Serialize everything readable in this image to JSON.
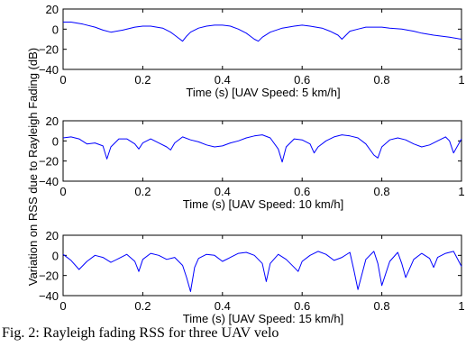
{
  "chart_data": {
    "ylabel": "Variation on RSS due to Rayleigh Fading (dB)",
    "color": "#0000ff",
    "panels": [
      {
        "type": "line",
        "xlabel": "Time (s) [UAV Speed: 5 km/h]",
        "xlim": [
          0,
          1
        ],
        "ylim": [
          -40,
          20
        ],
        "xticks": [
          "0",
          "0.2",
          "0.4",
          "0.6",
          "0.8",
          "1"
        ],
        "yticks": [
          "20",
          "0",
          "−20",
          "−40"
        ],
        "x": [
          0,
          0.02,
          0.05,
          0.08,
          0.1,
          0.12,
          0.15,
          0.18,
          0.2,
          0.22,
          0.25,
          0.27,
          0.28,
          0.29,
          0.3,
          0.31,
          0.32,
          0.34,
          0.36,
          0.38,
          0.4,
          0.42,
          0.44,
          0.46,
          0.47,
          0.48,
          0.49,
          0.5,
          0.52,
          0.55,
          0.58,
          0.6,
          0.62,
          0.65,
          0.67,
          0.69,
          0.7,
          0.71,
          0.72,
          0.74,
          0.76,
          0.78,
          0.8,
          0.82,
          0.85,
          0.88,
          0.9,
          0.93,
          0.95,
          0.97,
          1.0
        ],
        "y": [
          7,
          7,
          5,
          2,
          -1,
          -3,
          -1,
          2,
          3,
          3,
          1,
          -3,
          -6,
          -9,
          -12,
          -7,
          -3,
          1,
          3,
          4,
          4,
          3,
          0,
          -4,
          -7,
          -10,
          -12,
          -8,
          -3,
          1,
          3,
          4,
          3,
          1,
          -2,
          -6,
          -10,
          -6,
          -2,
          0,
          2,
          2,
          2,
          1,
          0,
          -2,
          -4,
          -6,
          -7,
          -8,
          -10
        ]
      },
      {
        "type": "line",
        "xlabel": "Time (s) [UAV Speed: 10 km/h]",
        "xlim": [
          0,
          1
        ],
        "ylim": [
          -40,
          20
        ],
        "xticks": [
          "0",
          "0.2",
          "0.4",
          "0.6",
          "0.8",
          "1"
        ],
        "yticks": [
          "20",
          "0",
          "−20",
          "−40"
        ],
        "x": [
          0,
          0.02,
          0.04,
          0.06,
          0.08,
          0.1,
          0.11,
          0.12,
          0.14,
          0.16,
          0.18,
          0.19,
          0.2,
          0.22,
          0.24,
          0.26,
          0.27,
          0.28,
          0.3,
          0.32,
          0.34,
          0.36,
          0.38,
          0.4,
          0.42,
          0.44,
          0.46,
          0.48,
          0.5,
          0.52,
          0.54,
          0.55,
          0.56,
          0.58,
          0.6,
          0.62,
          0.63,
          0.64,
          0.66,
          0.68,
          0.7,
          0.72,
          0.74,
          0.76,
          0.78,
          0.79,
          0.8,
          0.82,
          0.84,
          0.86,
          0.88,
          0.9,
          0.92,
          0.94,
          0.96,
          0.97,
          0.98,
          1.0
        ],
        "y": [
          3,
          4,
          2,
          -3,
          -2,
          -5,
          -18,
          -6,
          2,
          2,
          -3,
          -8,
          -2,
          2,
          -2,
          -6,
          -9,
          -2,
          4,
          1,
          -1,
          -4,
          -6,
          -5,
          -2,
          0,
          3,
          5,
          6,
          3,
          -8,
          -21,
          -6,
          2,
          1,
          -3,
          -12,
          -6,
          0,
          4,
          6,
          5,
          3,
          -3,
          -14,
          -17,
          -6,
          1,
          3,
          1,
          -3,
          -6,
          -4,
          0,
          4,
          0,
          -12,
          2
        ]
      },
      {
        "type": "line",
        "xlabel": "Time (s) [UAV Speed: 15 km/h]",
        "xlim": [
          0,
          1
        ],
        "ylim": [
          -40,
          20
        ],
        "xticks": [
          "0",
          "0.2",
          "0.4",
          "0.6",
          "0.8",
          "1"
        ],
        "yticks": [
          "20",
          "0",
          "−20",
          "−40"
        ],
        "x": [
          0,
          0.02,
          0.04,
          0.06,
          0.08,
          0.1,
          0.12,
          0.14,
          0.16,
          0.18,
          0.19,
          0.2,
          0.22,
          0.24,
          0.26,
          0.28,
          0.3,
          0.31,
          0.32,
          0.33,
          0.34,
          0.36,
          0.38,
          0.4,
          0.42,
          0.44,
          0.46,
          0.48,
          0.5,
          0.51,
          0.52,
          0.54,
          0.56,
          0.58,
          0.59,
          0.6,
          0.62,
          0.64,
          0.66,
          0.68,
          0.7,
          0.72,
          0.73,
          0.74,
          0.76,
          0.78,
          0.79,
          0.8,
          0.82,
          0.84,
          0.85,
          0.86,
          0.88,
          0.9,
          0.92,
          0.93,
          0.94,
          0.96,
          0.98,
          1.0
        ],
        "y": [
          1,
          -5,
          -14,
          -6,
          0,
          -2,
          -7,
          -3,
          1,
          -6,
          -16,
          -4,
          2,
          0,
          -4,
          -2,
          -10,
          -22,
          -36,
          -12,
          -3,
          1,
          0,
          -6,
          -2,
          2,
          3,
          0,
          -8,
          -26,
          -8,
          1,
          -4,
          -12,
          -16,
          -6,
          0,
          4,
          1,
          -5,
          -2,
          3,
          -15,
          -34,
          -4,
          4,
          -8,
          -30,
          -6,
          3,
          -8,
          -22,
          -4,
          2,
          -3,
          -12,
          -2,
          2,
          4,
          -11
        ]
      }
    ]
  },
  "caption": "Fig. 2: Rayleigh fading RSS for three UAV velo"
}
